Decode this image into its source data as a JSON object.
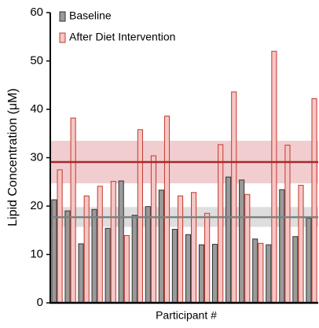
{
  "chart_data": {
    "type": "bar",
    "x_label": "Participant #",
    "y_label": "Lipid Concentration (μM)",
    "categories": [
      null,
      null,
      null,
      null,
      null,
      null,
      null,
      null,
      null,
      null,
      null,
      null,
      null,
      null,
      null,
      null,
      null,
      null,
      null,
      null
    ],
    "series": [
      {
        "name": "Baseline",
        "color": "#9a9a9a",
        "edge": "#333333",
        "values": [
          21.3,
          19,
          12.2,
          19.3,
          15.4,
          25.2,
          18.1,
          19.9,
          23.3,
          15.2,
          14.1,
          12,
          12.1,
          26,
          25.4,
          13.2,
          12,
          23.4,
          13.7,
          17.5
        ]
      },
      {
        "name": "After Diet Intervention",
        "color": "#f6c6c6",
        "edge": "#c0392b",
        "values": [
          27.5,
          38.2,
          22.1,
          24.1,
          25.1,
          13.9,
          35.8,
          30.4,
          38.6,
          22.1,
          22.8,
          18.5,
          32.7,
          43.6,
          22.4,
          12.3,
          52,
          32.6,
          24.3,
          42.2
        ]
      }
    ],
    "reference_lines": [
      {
        "value": 17.7,
        "band": [
          15.7,
          19.8
        ],
        "color": "#808080",
        "band_color": "rgba(160,160,160,0.35)"
      },
      {
        "value": 29.1,
        "band": [
          24.7,
          33.5
        ],
        "color": "#a52a2a",
        "band_color": "rgba(210,90,100,0.3)"
      }
    ],
    "ylim": [
      0,
      60
    ],
    "yticks": [
      0,
      10,
      20,
      30,
      40,
      50,
      60
    ],
    "legend": "upper left"
  }
}
